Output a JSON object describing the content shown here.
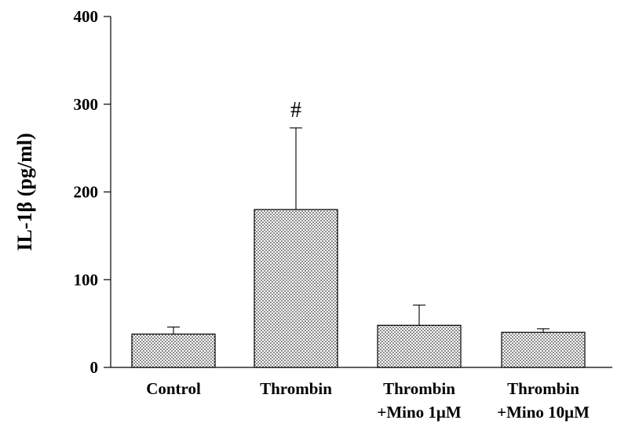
{
  "chart_data": {
    "type": "bar",
    "categories": [
      [
        "Control"
      ],
      [
        "Thrombin"
      ],
      [
        "Thrombin",
        "+Mino 1μM"
      ],
      [
        "Thrombin",
        "+Mino 10μM"
      ]
    ],
    "values": [
      38,
      180,
      48,
      40
    ],
    "error_upper": [
      46,
      273,
      71,
      44
    ],
    "annotations": [
      {
        "category_index": 1,
        "text": "#"
      }
    ],
    "title": "",
    "xlabel": "",
    "ylabel": "IL-1β (pg/ml)",
    "ylim": [
      0,
      400
    ],
    "yticks": [
      0,
      100,
      200,
      300,
      400
    ],
    "grid": false,
    "bar_fill": "stippled",
    "colors": {
      "bar_edge": "#000000",
      "bar_dots": "#000000",
      "background": "#ffffff"
    }
  }
}
